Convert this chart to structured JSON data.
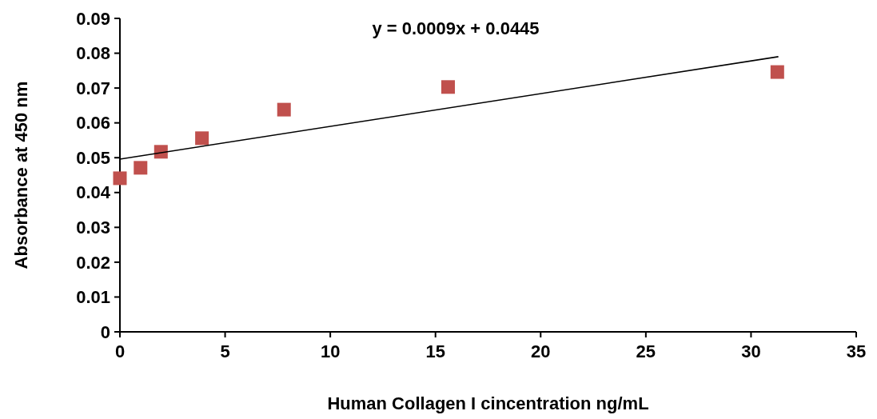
{
  "chart_data": {
    "type": "scatter",
    "xlabel": "Human Collagen I cincentration ng/mL",
    "ylabel": "Absorbance at 450 nm",
    "annotations": [
      "y = 0.0009x + 0.0445"
    ],
    "xlim": [
      0,
      35
    ],
    "ylim": [
      0,
      0.09
    ],
    "xticks": [
      0,
      5,
      10,
      15,
      20,
      25,
      30,
      35
    ],
    "yticks": [
      {
        "value": 0,
        "label": "0"
      },
      {
        "value": 0.01,
        "label": "0.01"
      },
      {
        "value": 0.02,
        "label": "0.02"
      },
      {
        "value": 0.03,
        "label": "0.03"
      },
      {
        "value": 0.04,
        "label": "0.04"
      },
      {
        "value": 0.05,
        "label": "0.05"
      },
      {
        "value": 0.06,
        "label": "0.06"
      },
      {
        "value": 0.07,
        "label": "0.07"
      },
      {
        "value": 0.08,
        "label": "0.08"
      },
      {
        "value": 0.09,
        "label": "0.09"
      }
    ],
    "grid": false,
    "series": [
      {
        "marker": "square",
        "color": "#c0504d",
        "x": [
          0,
          0.98,
          1.95,
          3.9,
          7.8,
          15.6,
          31.25
        ],
        "values": [
          0.0441,
          0.0471,
          0.0517,
          0.0556,
          0.0638,
          0.0703,
          0.0746
        ]
      },
      {
        "type": "line",
        "color": "#000000",
        "x": [
          0,
          31.3
        ],
        "values": [
          0.0496,
          0.079
        ]
      }
    ]
  }
}
